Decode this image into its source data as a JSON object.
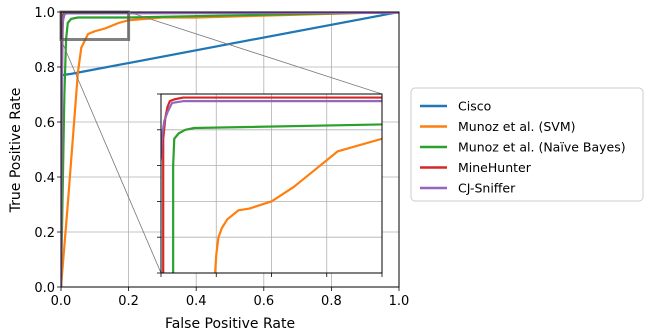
{
  "chart_data": {
    "type": "line",
    "xlabel": "False Positive Rate",
    "ylabel": "True Positive Rate",
    "xlim": [
      0,
      1
    ],
    "ylim": [
      0,
      1
    ],
    "xticks": [
      "0.0",
      "0.2",
      "0.4",
      "0.6",
      "0.8",
      "1.0"
    ],
    "yticks": [
      "0.0",
      "0.2",
      "0.4",
      "0.6",
      "0.8",
      "1.0"
    ],
    "grid": true,
    "legend_position": "right",
    "series": [
      {
        "name": "Cisco",
        "color": "#1f77b4",
        "points": [
          [
            0,
            0
          ],
          [
            0.0,
            0.77
          ],
          [
            0.03,
            0.775
          ],
          [
            1.0,
            1.0
          ]
        ]
      },
      {
        "name": "Munoz et al. (SVM)",
        "color": "#ff7f0e",
        "points": [
          [
            0,
            0
          ],
          [
            0.02,
            0.3
          ],
          [
            0.04,
            0.62
          ],
          [
            0.05,
            0.78
          ],
          [
            0.06,
            0.87
          ],
          [
            0.08,
            0.92
          ],
          [
            0.1,
            0.93
          ],
          [
            0.13,
            0.94
          ],
          [
            0.17,
            0.96
          ],
          [
            0.2,
            0.97
          ],
          [
            0.25,
            0.975
          ],
          [
            0.3,
            0.98
          ],
          [
            0.4,
            0.98
          ],
          [
            1.0,
            1.0
          ]
        ]
      },
      {
        "name": "Munoz et al. (Naïve Bayes)",
        "color": "#2ca02c",
        "points": [
          [
            0,
            0
          ],
          [
            0.01,
            0.7
          ],
          [
            0.015,
            0.9
          ],
          [
            0.02,
            0.96
          ],
          [
            0.03,
            0.975
          ],
          [
            0.05,
            0.98
          ],
          [
            0.1,
            0.98
          ],
          [
            0.2,
            0.98
          ],
          [
            1.0,
            1.0
          ]
        ]
      },
      {
        "name": "MineHunter",
        "color": "#d62728",
        "points": [
          [
            0,
            0
          ],
          [
            0.003,
            0.8
          ],
          [
            0.005,
            0.95
          ],
          [
            0.007,
            0.99
          ],
          [
            0.01,
            0.997
          ],
          [
            0.02,
            1.0
          ],
          [
            1.0,
            1.0
          ]
        ]
      },
      {
        "name": "CJ-Sniffer",
        "color": "#9467bd",
        "points": [
          [
            0,
            0
          ],
          [
            0.002,
            0.6
          ],
          [
            0.004,
            0.94
          ],
          [
            0.006,
            0.97
          ],
          [
            0.01,
            0.99
          ],
          [
            0.015,
            0.995
          ],
          [
            0.03,
            0.995
          ],
          [
            1.0,
            0.997
          ]
        ]
      }
    ],
    "zoom_region": {
      "x": [
        0,
        0.2
      ],
      "y": [
        0.9,
        1.0
      ]
    },
    "inset": {
      "xlim": [
        0,
        0.2
      ],
      "ylim": [
        0.9,
        1.0
      ],
      "series": [
        {
          "name": "Cisco",
          "points": []
        },
        {
          "name": "Munoz et al. (SVM)",
          "points": [
            [
              0.049,
              0.9
            ],
            [
              0.05,
              0.91
            ],
            [
              0.052,
              0.92
            ],
            [
              0.055,
              0.925
            ],
            [
              0.06,
              0.93
            ],
            [
              0.07,
              0.935
            ],
            [
              0.08,
              0.936
            ],
            [
              0.09,
              0.938
            ],
            [
              0.1,
              0.94
            ],
            [
              0.12,
              0.948
            ],
            [
              0.14,
              0.958
            ],
            [
              0.16,
              0.968
            ],
            [
              0.2,
              0.975
            ]
          ]
        },
        {
          "name": "Munoz et al. (Naïve Bayes)",
          "points": [
            [
              0.011,
              0.9
            ],
            [
              0.011,
              0.96
            ],
            [
              0.012,
              0.975
            ],
            [
              0.016,
              0.978
            ],
            [
              0.022,
              0.98
            ],
            [
              0.03,
              0.981
            ],
            [
              0.2,
              0.983
            ]
          ]
        },
        {
          "name": "MineHunter",
          "points": [
            [
              0.002,
              0.9
            ],
            [
              0.002,
              0.975
            ],
            [
              0.004,
              0.987
            ],
            [
              0.006,
              0.993
            ],
            [
              0.008,
              0.996
            ],
            [
              0.012,
              0.997
            ],
            [
              0.02,
              0.998
            ],
            [
              0.2,
              0.998
            ]
          ]
        },
        {
          "name": "CJ-Sniffer",
          "points": [
            [
              -0.002,
              0.9
            ],
            [
              -0.002,
              0.955
            ],
            [
              0.0,
              0.965
            ],
            [
              0.001,
              0.977
            ],
            [
              0.003,
              0.985
            ],
            [
              0.006,
              0.99
            ],
            [
              0.01,
              0.995
            ],
            [
              0.02,
              0.996
            ],
            [
              0.2,
              0.996
            ]
          ]
        }
      ]
    }
  }
}
